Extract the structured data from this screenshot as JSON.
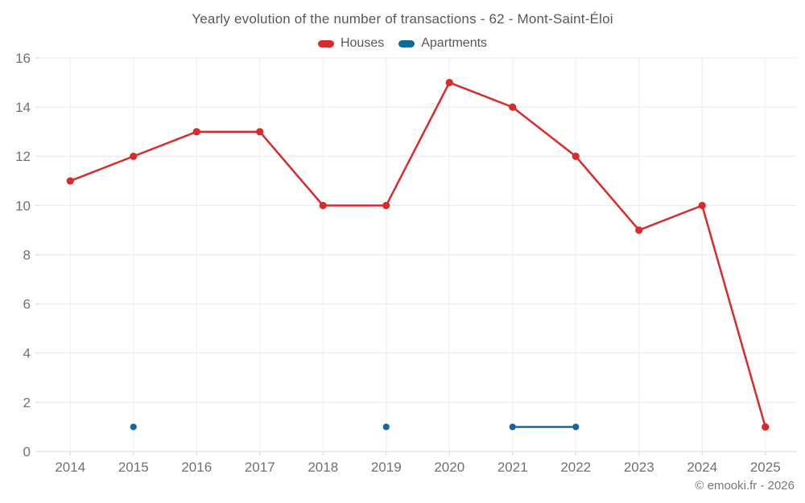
{
  "title": "Yearly evolution of the number of transactions - 62 - Mont-Saint-Éloi",
  "legend": {
    "items": [
      {
        "label": "Houses",
        "color": "#d62c2c"
      },
      {
        "label": "Apartments",
        "color": "#11689b"
      }
    ]
  },
  "footer": "© emooki.fr - 2026",
  "chart_data": {
    "type": "line",
    "title": "Yearly evolution of the number of transactions - 62 - Mont-Saint-Éloi",
    "categories": [
      "2014",
      "2015",
      "2016",
      "2017",
      "2018",
      "2019",
      "2020",
      "2021",
      "2022",
      "2023",
      "2024",
      "2025"
    ],
    "series": [
      {
        "name": "Houses",
        "color": "#d62c2c",
        "marker_radius": 4.6,
        "values": [
          11,
          12,
          13,
          13,
          10,
          10,
          15,
          14,
          12,
          9,
          10,
          1
        ]
      },
      {
        "name": "Apartments",
        "color": "#11689b",
        "marker_radius": 4.1,
        "values": [
          null,
          1,
          null,
          null,
          null,
          1,
          null,
          1,
          1,
          null,
          null,
          null
        ]
      }
    ],
    "xlabel": "",
    "ylabel": "",
    "ylim": [
      0,
      16
    ],
    "ytick_step": 2,
    "grid": true,
    "legend_position": "top"
  }
}
